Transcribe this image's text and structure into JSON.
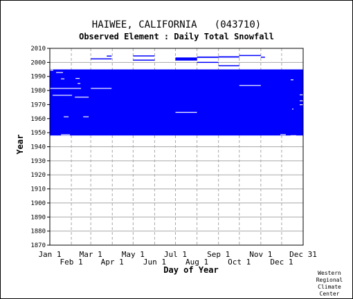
{
  "chart_data": {
    "type": "heatmap",
    "title": "HAIWEE, CALIFORNIA   (043710)",
    "subtitle": "Observed Element : Daily Total Snowfall",
    "xlabel": "Day of Year",
    "ylabel": "Year",
    "x_range": [
      1,
      366
    ],
    "ylim": [
      1870,
      2010
    ],
    "yticks": [
      1870,
      1880,
      1890,
      1900,
      1910,
      1920,
      1930,
      1940,
      1950,
      1960,
      1970,
      1980,
      1990,
      2000,
      2010
    ],
    "xticks": [
      {
        "label": "Jan 1",
        "day": 1,
        "row": 0
      },
      {
        "label": "Feb 1",
        "day": 32,
        "row": 1
      },
      {
        "label": "Mar 1",
        "day": 60,
        "row": 0
      },
      {
        "label": "Apr 1",
        "day": 91,
        "row": 1
      },
      {
        "label": "May 1",
        "day": 121,
        "row": 0
      },
      {
        "label": "Jun 1",
        "day": 152,
        "row": 1
      },
      {
        "label": "Jul 1",
        "day": 182,
        "row": 0
      },
      {
        "label": "Aug 1",
        "day": 213,
        "row": 1
      },
      {
        "label": "Sep 1",
        "day": 244,
        "row": 0
      },
      {
        "label": "Oct 1",
        "day": 274,
        "row": 1
      },
      {
        "label": "Nov 1",
        "day": 305,
        "row": 0
      },
      {
        "label": "Dec 1",
        "day": 335,
        "row": 1
      },
      {
        "label": "Dec 31",
        "day": 366,
        "row": 0
      }
    ],
    "grid": true,
    "data_color": "#0000ff",
    "coverage_blocks": [
      {
        "day_start": 1,
        "day_end": 366,
        "year_start": 1948,
        "year_end": 1995
      }
    ],
    "coverage_segments": [
      {
        "day_start": 60,
        "day_end": 90,
        "year": 2002.5,
        "thickness": 0.7
      },
      {
        "day_start": 83,
        "day_end": 90,
        "year": 2004.5,
        "thickness": 0.7
      },
      {
        "day_start": 90,
        "day_end": 118,
        "year": 1989,
        "thickness": 0.7
      },
      {
        "day_start": 121,
        "day_end": 152,
        "year": 2004.6,
        "thickness": 0.7
      },
      {
        "day_start": 121,
        "day_end": 152,
        "year": 2001.6,
        "thickness": 0.7
      },
      {
        "day_start": 182,
        "day_end": 213,
        "year": 2002.4,
        "thickness": 2.2
      },
      {
        "day_start": 213,
        "day_end": 244,
        "year": 2003.7,
        "thickness": 0.9
      },
      {
        "day_start": 244,
        "day_end": 274,
        "year": 2003.9,
        "thickness": 0.9
      },
      {
        "day_start": 274,
        "day_end": 305,
        "year": 2004.9,
        "thickness": 0.7
      },
      {
        "day_start": 305,
        "day_end": 311,
        "year": 2003.7,
        "thickness": 0.7
      },
      {
        "day_start": 213,
        "day_end": 244,
        "year": 2000,
        "thickness": 0.5
      },
      {
        "day_start": 244,
        "day_end": 274,
        "year": 1997.6,
        "thickness": 0.5
      }
    ],
    "missing_segments": [
      {
        "day_start": 1,
        "day_end": 6,
        "year": 1994.5,
        "thickness": 0.6
      },
      {
        "day_start": 10,
        "day_end": 20,
        "year": 1992.8,
        "thickness": 0.5
      },
      {
        "day_start": 17,
        "day_end": 22,
        "year": 1988.3,
        "thickness": 0.5
      },
      {
        "day_start": 38,
        "day_end": 44,
        "year": 1988.6,
        "thickness": 0.5
      },
      {
        "day_start": 41,
        "day_end": 45,
        "year": 1985,
        "thickness": 0.5
      },
      {
        "day_start": 1,
        "day_end": 46,
        "year": 1981.5,
        "thickness": 0.5
      },
      {
        "day_start": 60,
        "day_end": 90,
        "year": 1981.5,
        "thickness": 0.5
      },
      {
        "day_start": 5,
        "day_end": 33,
        "year": 1976.6,
        "thickness": 0.5
      },
      {
        "day_start": 37,
        "day_end": 57,
        "year": 1975.3,
        "thickness": 0.5
      },
      {
        "day_start": 21,
        "day_end": 28,
        "year": 1961.3,
        "thickness": 0.5
      },
      {
        "day_start": 49,
        "day_end": 57,
        "year": 1961.3,
        "thickness": 0.5
      },
      {
        "day_start": 182,
        "day_end": 213,
        "year": 1964.5,
        "thickness": 0.5
      },
      {
        "day_start": 274,
        "day_end": 305,
        "year": 1983.6,
        "thickness": 0.5
      },
      {
        "day_start": 348,
        "day_end": 352,
        "year": 1987.6,
        "thickness": 0.5
      },
      {
        "day_start": 361,
        "day_end": 366,
        "year": 1976.9,
        "thickness": 0.5
      },
      {
        "day_start": 361,
        "day_end": 366,
        "year": 1972.7,
        "thickness": 0.5
      },
      {
        "day_start": 361,
        "day_end": 366,
        "year": 1969.9,
        "thickness": 0.5
      },
      {
        "day_start": 350,
        "day_end": 352,
        "year": 1966.8,
        "thickness": 0.5
      },
      {
        "day_start": 333,
        "day_end": 341,
        "year": 1948.6,
        "thickness": 0.5
      },
      {
        "day_start": 348,
        "day_end": 356,
        "year": 1947.9,
        "thickness": 0.5
      },
      {
        "day_start": 17,
        "day_end": 30,
        "year": 1948.5,
        "thickness": 0.5
      }
    ]
  },
  "credit": [
    "Western",
    "Regional",
    "Climate",
    "Center"
  ]
}
